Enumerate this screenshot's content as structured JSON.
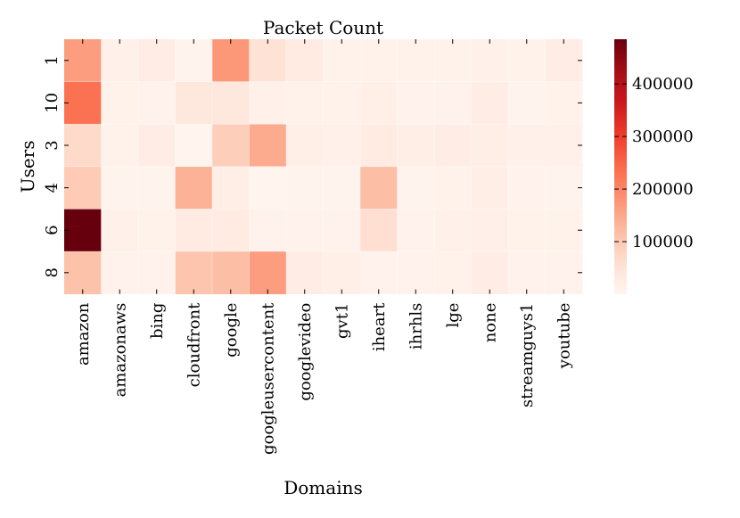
{
  "chart_data": {
    "type": "heatmap",
    "title": "Packet Count",
    "xlabel": "Domains",
    "ylabel": "Users",
    "x_categories": [
      "amazon",
      "amazonaws",
      "bing",
      "cloudfront",
      "google",
      "googleusercontent",
      "googlevideo",
      "gvt1",
      "iheart",
      "ihrhls",
      "lge",
      "none",
      "streamguys1",
      "youtube"
    ],
    "y_categories": [
      "1",
      "10",
      "3",
      "4",
      "6",
      "8"
    ],
    "values": [
      [
        165000,
        15000,
        22000,
        6000,
        175000,
        55000,
        28000,
        10000,
        10000,
        10000,
        10000,
        15000,
        10000,
        22000
      ],
      [
        230000,
        10000,
        8000,
        40000,
        40000,
        14000,
        10000,
        10000,
        18000,
        8000,
        8000,
        25000,
        6000,
        10000
      ],
      [
        70000,
        10000,
        25000,
        4000,
        90000,
        145000,
        18000,
        13000,
        28000,
        20000,
        22000,
        20000,
        14000,
        14000
      ],
      [
        95000,
        6000,
        7000,
        135000,
        20000,
        4000,
        6000,
        6000,
        115000,
        6000,
        10000,
        20000,
        8000,
        6000
      ],
      [
        485000,
        12000,
        10000,
        28000,
        28000,
        8000,
        8000,
        8000,
        62000,
        8000,
        12000,
        16000,
        10000,
        10000
      ],
      [
        110000,
        8000,
        8000,
        105000,
        115000,
        165000,
        22000,
        18000,
        8000,
        8000,
        10000,
        22000,
        8000,
        8000
      ]
    ],
    "colorbar": {
      "colormap": "Reds",
      "range": [
        0,
        485000
      ],
      "ticks": [
        100000,
        200000,
        300000,
        400000
      ],
      "tick_labels": [
        "100000",
        "200000",
        "300000",
        "400000"
      ]
    },
    "grid": false,
    "legend": "colorbar-right"
  }
}
